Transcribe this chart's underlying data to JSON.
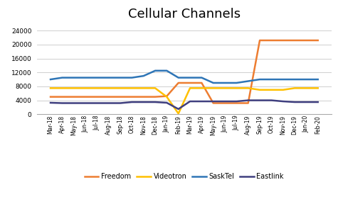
{
  "title": "Cellular Channels",
  "labels": [
    "Mar-18",
    "Apr-18",
    "May-18",
    "Jun-18",
    "Jul-18",
    "Aug-18",
    "Sep-18",
    "Oct-18",
    "Nov-18",
    "Dec-18",
    "Jan-19",
    "Feb-19",
    "Mar-19",
    "Apr-19",
    "May-19",
    "Jun-19",
    "Jul-19",
    "Aug-19",
    "Sep-19",
    "Oct-19",
    "Nov-19",
    "Dec-19",
    "Jan-20",
    "Feb-20"
  ],
  "Freedom": [
    5000,
    5000,
    5000,
    5000,
    5000,
    5000,
    5000,
    5000,
    5000,
    5000,
    5200,
    9000,
    9000,
    9000,
    3200,
    3200,
    3200,
    3200,
    21200,
    21200,
    21200,
    21200,
    21200,
    21200
  ],
  "Videotron": [
    7500,
    7500,
    7500,
    7500,
    7500,
    7500,
    7500,
    7500,
    7500,
    7500,
    5000,
    200,
    7500,
    7500,
    7500,
    7500,
    7500,
    7500,
    7000,
    7000,
    7000,
    7500,
    7500,
    7500
  ],
  "SaskTel": [
    10000,
    10500,
    10500,
    10500,
    10500,
    10500,
    10500,
    10500,
    11000,
    12500,
    12500,
    10500,
    10500,
    10500,
    9000,
    9000,
    9000,
    9500,
    10000,
    10000,
    10000,
    10000,
    10000,
    10000
  ],
  "Eastlink": [
    3300,
    3200,
    3200,
    3200,
    3200,
    3200,
    3200,
    3500,
    3500,
    3500,
    3300,
    1500,
    3700,
    3700,
    3700,
    3700,
    3700,
    4000,
    4000,
    4000,
    3700,
    3500,
    3500,
    3500
  ],
  "colors": {
    "Freedom": "#ED7D31",
    "Videotron": "#FFC000",
    "SaskTel": "#2E75B6",
    "Eastlink": "#3F3F7F"
  },
  "ylim": [
    0,
    26000
  ],
  "yticks": [
    0,
    4000,
    8000,
    12000,
    16000,
    20000,
    24000
  ],
  "background_color": "#FFFFFF",
  "title_fontsize": 13,
  "series_order": [
    "Freedom",
    "Videotron",
    "SaskTel",
    "Eastlink"
  ]
}
